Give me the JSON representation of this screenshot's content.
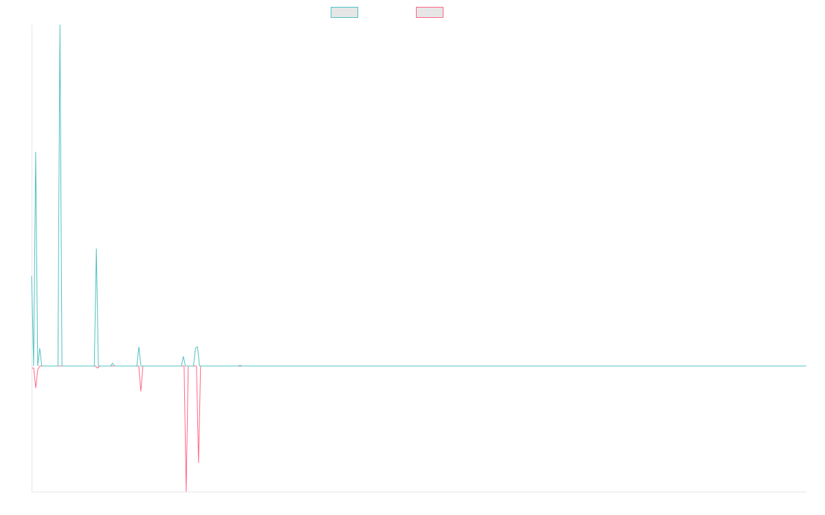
{
  "chart_data": {
    "type": "line",
    "title": "",
    "xlabel": "",
    "ylabel": "",
    "grid": false,
    "legend_position": "top-center",
    "ylim": [
      -183,
      497
    ],
    "series": [
      {
        "name": "",
        "color": "#4bc0c0",
        "fill": "#e6e6e6",
        "values": [
          131,
          0,
          312,
          0,
          26,
          0,
          0,
          0,
          0,
          0,
          0,
          0,
          0,
          0,
          497,
          0,
          0,
          0,
          0,
          0,
          0,
          0,
          0,
          0,
          0,
          0,
          0,
          0,
          0,
          0,
          0,
          0,
          171,
          0,
          0,
          0,
          0,
          0,
          0,
          0,
          4,
          0,
          0,
          0,
          0,
          0,
          0,
          0,
          0,
          0,
          0,
          0,
          0,
          28,
          0,
          0,
          0,
          0,
          0,
          0,
          0,
          0,
          0,
          0,
          0,
          0,
          0,
          0,
          0,
          0,
          0,
          0,
          0,
          0,
          0,
          14,
          0,
          0,
          0,
          0,
          0,
          26,
          28,
          0,
          0,
          0,
          0,
          0,
          0,
          0,
          0,
          0,
          0,
          0,
          0,
          0,
          0,
          0,
          0,
          0,
          0,
          0,
          0,
          1,
          0,
          0,
          0,
          0,
          0,
          0,
          0,
          0,
          0,
          0,
          0,
          0,
          0,
          0,
          0,
          0,
          0,
          0,
          0,
          0,
          0,
          0,
          0,
          0,
          0,
          0,
          0,
          0,
          0,
          0,
          0,
          0,
          0,
          0,
          0,
          0,
          0,
          0,
          0,
          0,
          0,
          0,
          0,
          0,
          0,
          0,
          0,
          0,
          0,
          0,
          0,
          0,
          0,
          0,
          0,
          0,
          0,
          0,
          0,
          0,
          0,
          0,
          0,
          0,
          0,
          0,
          0,
          0,
          0,
          0,
          0,
          0,
          0,
          0,
          0,
          0,
          0,
          0,
          0,
          0,
          0,
          0,
          0,
          0,
          0,
          0,
          0,
          0,
          0,
          0,
          0,
          0,
          0,
          0,
          0,
          0,
          0,
          0,
          0,
          0,
          0,
          0,
          0,
          0,
          0,
          0,
          0,
          0,
          0,
          0,
          0,
          0,
          0,
          0,
          0,
          0,
          0,
          0,
          0,
          0,
          0,
          0,
          0,
          0,
          0,
          0,
          0,
          0,
          0,
          0,
          0,
          0,
          0,
          0,
          0,
          0,
          0,
          0,
          0,
          0,
          0,
          0,
          0,
          0,
          0,
          0,
          0,
          0,
          0,
          0,
          0,
          0,
          0,
          0,
          0,
          0,
          0,
          0,
          0,
          0,
          0,
          0,
          0,
          0,
          0,
          0,
          0,
          0,
          0,
          0,
          0,
          0,
          0,
          0,
          0,
          0,
          0,
          0,
          0,
          0,
          0,
          0,
          0,
          0,
          0,
          0,
          0,
          0,
          0,
          0,
          0,
          0,
          0,
          0,
          0,
          0,
          0,
          0,
          0,
          0,
          0,
          0,
          0,
          0,
          0,
          0,
          0,
          0,
          0,
          0,
          0,
          0,
          0,
          0,
          0,
          0,
          0,
          0,
          0,
          0,
          0,
          0,
          0,
          0,
          0,
          0,
          0,
          0,
          0,
          0,
          0,
          0,
          0,
          0,
          0,
          0,
          0,
          0,
          0,
          0,
          0,
          0,
          0,
          0,
          0,
          0,
          0,
          0,
          0,
          0,
          0,
          0,
          0,
          0,
          0,
          0,
          0,
          0,
          0,
          0,
          0,
          0,
          0,
          0,
          0,
          0,
          0,
          0,
          0,
          0,
          0,
          0,
          0,
          0,
          0,
          0,
          0,
          0,
          0,
          0
        ]
      },
      {
        "name": "",
        "color": "#ff6384",
        "fill": "#e6e6e6",
        "values": [
          -3,
          -3,
          -32,
          -5,
          0,
          0,
          0,
          0,
          0,
          0,
          0,
          0,
          0,
          0,
          0,
          0,
          0,
          0,
          0,
          0,
          0,
          0,
          0,
          0,
          0,
          0,
          0,
          0,
          0,
          0,
          0,
          0,
          -3,
          0,
          0,
          0,
          0,
          0,
          0,
          0,
          0,
          0,
          0,
          0,
          0,
          0,
          0,
          0,
          0,
          0,
          0,
          0,
          0,
          -37,
          0,
          0,
          0,
          0,
          0,
          0,
          0,
          0,
          0,
          0,
          0,
          0,
          0,
          0,
          0,
          0,
          0,
          0,
          0,
          0,
          0,
          -183,
          0,
          0,
          0,
          0,
          0,
          -141,
          0,
          0,
          0,
          0,
          0,
          0,
          0,
          0,
          0,
          0,
          0,
          0,
          0,
          0,
          0,
          0,
          0,
          0,
          0,
          0,
          0,
          0,
          0,
          0,
          0,
          0,
          0,
          0,
          0,
          0,
          0,
          0,
          0,
          0,
          0,
          0,
          0,
          0,
          0,
          0,
          0,
          0,
          0,
          0,
          0,
          0,
          0,
          0,
          0,
          0,
          0,
          0,
          0,
          0,
          0,
          0,
          0,
          0,
          0,
          0,
          0,
          0,
          0,
          0,
          0,
          0,
          0,
          0,
          0,
          0,
          0,
          0,
          0,
          0,
          0,
          0,
          0,
          0,
          0,
          0,
          0,
          0,
          0,
          0,
          0,
          0,
          0,
          0,
          0,
          0,
          0,
          0,
          0,
          0,
          0,
          0,
          0,
          0,
          0,
          0,
          0,
          0,
          0,
          0,
          0,
          0,
          0,
          0,
          0,
          0,
          0,
          0,
          0,
          0,
          0,
          0,
          0,
          0,
          0,
          0,
          0,
          0,
          0,
          0,
          0,
          0,
          0,
          0,
          0,
          0,
          0,
          0,
          0,
          0,
          0,
          0,
          0,
          0,
          0,
          0,
          0,
          0,
          0,
          0,
          0,
          0,
          0,
          0,
          0,
          0,
          0,
          0,
          0,
          0,
          0,
          0,
          0,
          0,
          0,
          0,
          0,
          0,
          0,
          0,
          0,
          0,
          0,
          0,
          0,
          0,
          0,
          0,
          0,
          0,
          0,
          0,
          0,
          0,
          0,
          0,
          0,
          0,
          0,
          0,
          0,
          0,
          0,
          0,
          0,
          0,
          0,
          0,
          0,
          0,
          0,
          0,
          0,
          0,
          0,
          0,
          0,
          0,
          0,
          0,
          0,
          0,
          0,
          0,
          0,
          0,
          0,
          0,
          0,
          0,
          0,
          0,
          0,
          0,
          0,
          0,
          0,
          0,
          0,
          0,
          0,
          0,
          0,
          0,
          0,
          0,
          0,
          0,
          0,
          0,
          0,
          0,
          0,
          0,
          0,
          0,
          0,
          0,
          0,
          0,
          0,
          0,
          0,
          0,
          0,
          0,
          0,
          0,
          0,
          0,
          0,
          0,
          0,
          0,
          0,
          0,
          0,
          0,
          0,
          0,
          0,
          0,
          0,
          0,
          0,
          0,
          0,
          0,
          0,
          0,
          0,
          0,
          0,
          0,
          0,
          0,
          0,
          0,
          0,
          0,
          0,
          0,
          0,
          0,
          0,
          0,
          0,
          0,
          0,
          0,
          0
        ]
      }
    ]
  }
}
